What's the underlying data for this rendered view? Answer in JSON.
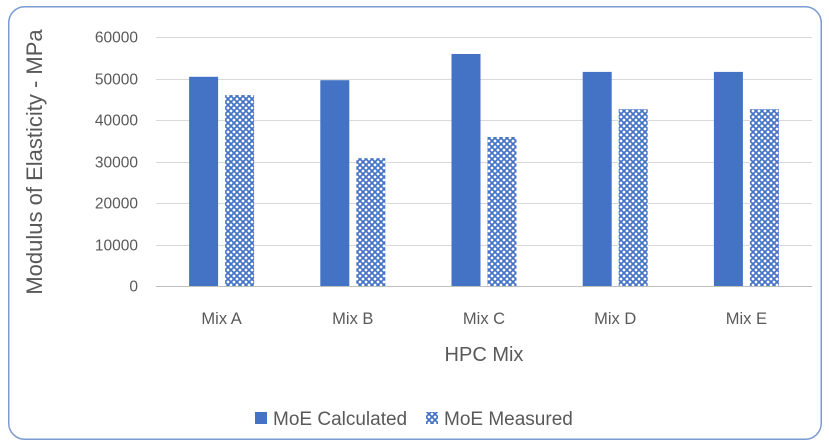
{
  "chart_data": {
    "type": "bar",
    "categories": [
      "Mix A",
      "Mix B",
      "Mix C",
      "Mix D",
      "Mix E"
    ],
    "series": [
      {
        "name": "MoE Calculated",
        "values": [
          50400,
          49600,
          55900,
          51600,
          51600
        ],
        "color": "#4472C4",
        "fill": "solid"
      },
      {
        "name": "MoE Measured",
        "values": [
          46000,
          30800,
          35900,
          42600,
          42600
        ],
        "color": "#4472C4",
        "fill": "checkered"
      }
    ],
    "xlabel": "HPC Mix",
    "ylabel": "Modulus of Elasticity - MPa",
    "ylim": [
      0,
      60000
    ],
    "yticks": [
      0,
      10000,
      20000,
      30000,
      40000,
      50000,
      60000
    ],
    "grid": true,
    "legend": "bottom"
  }
}
